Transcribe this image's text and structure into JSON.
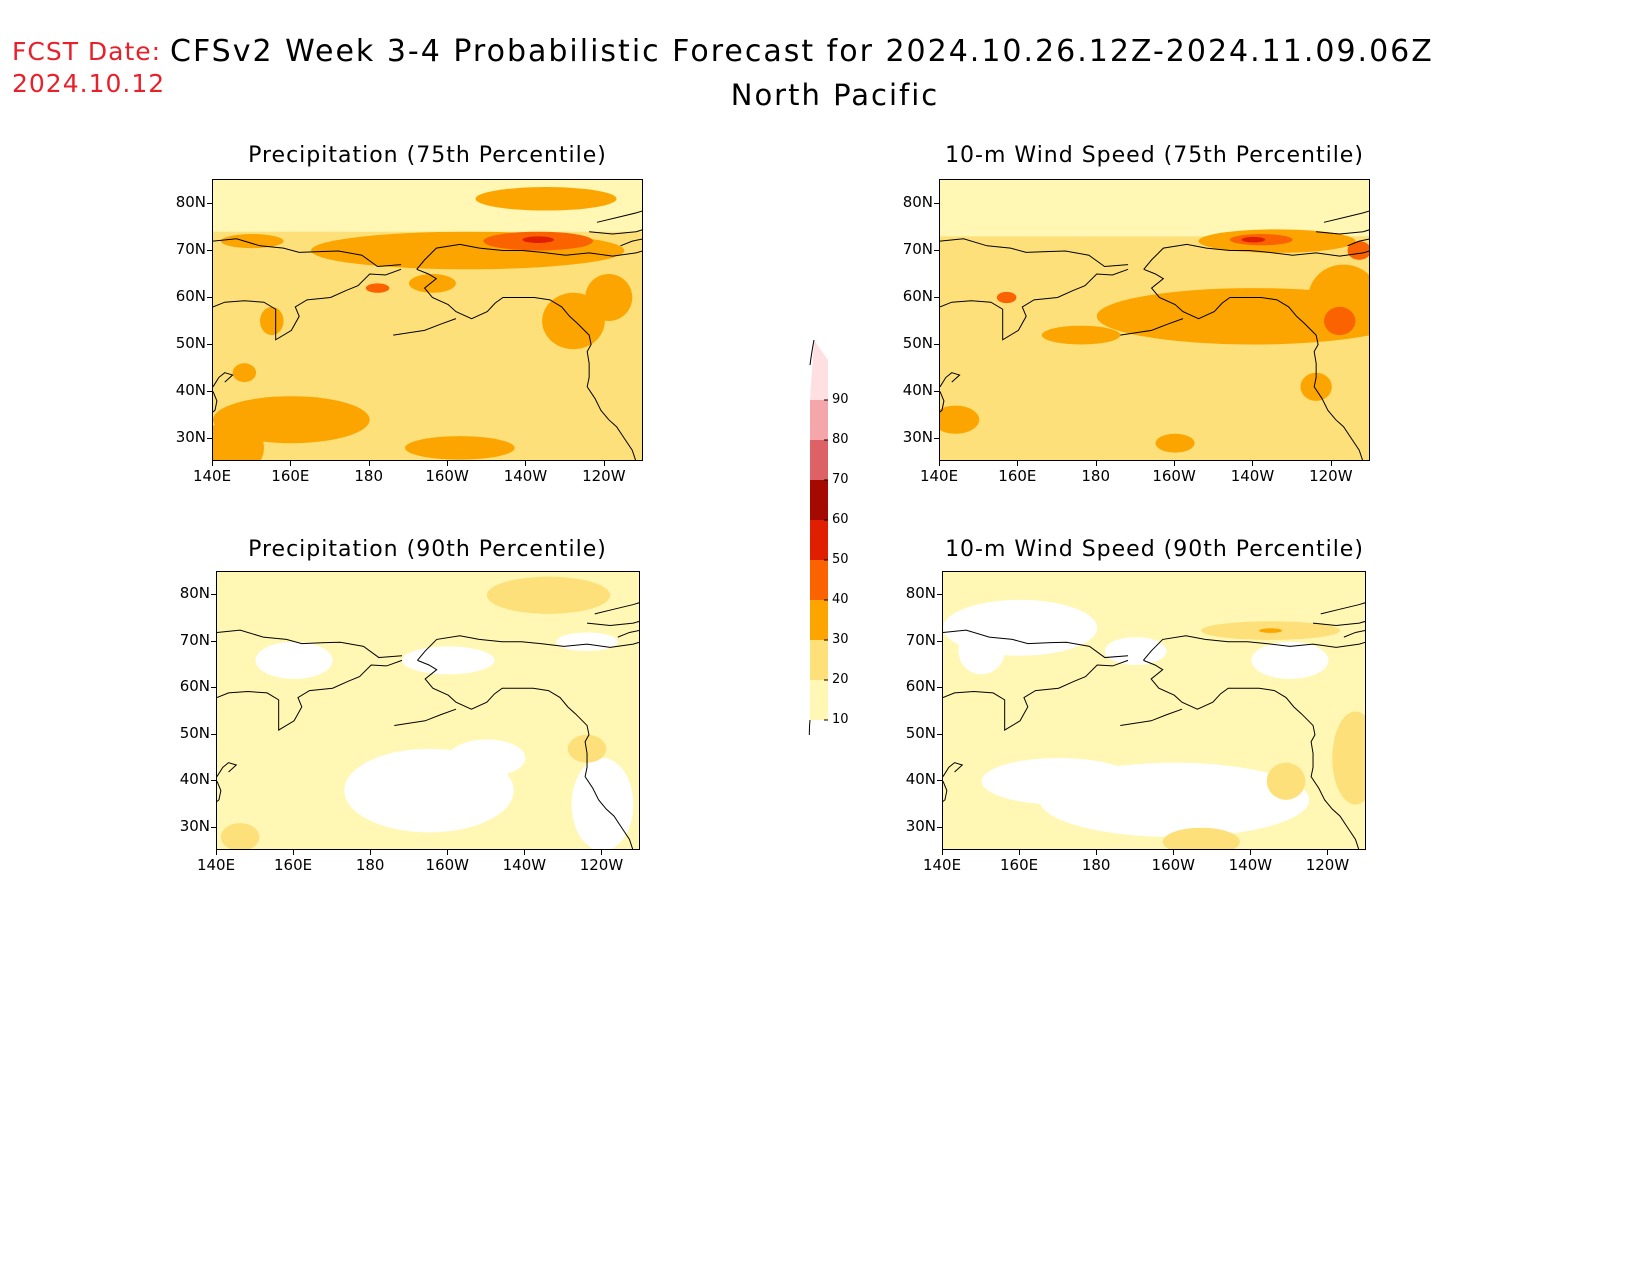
{
  "header": {
    "fcst_label": "FCST Date:",
    "fcst_date": "2024.10.12",
    "title": "CFSv2 Week 3-4 Probabilistic Forecast for 2024.10.26.12Z-2024.11.09.06Z",
    "region": "North Pacific"
  },
  "axes": {
    "lat_ticks": [
      "80N",
      "70N",
      "60N",
      "50N",
      "40N",
      "30N"
    ],
    "lat_values": [
      80,
      70,
      60,
      50,
      40,
      30
    ],
    "lon_ticks": [
      "140E",
      "160E",
      "180",
      "160W",
      "140W",
      "120W"
    ],
    "lon_values": [
      140,
      160,
      180,
      200,
      220,
      240
    ],
    "lon_range": [
      140,
      250
    ],
    "lat_range": [
      25,
      85
    ]
  },
  "panels": [
    {
      "id": "precip75",
      "title": "Precipitation (75th Percentile)",
      "level": "high"
    },
    {
      "id": "wind75",
      "title": "10-m Wind Speed (75th Percentile)",
      "level": "high"
    },
    {
      "id": "precip90",
      "title": "Precipitation (90th Percentile)",
      "level": "low"
    },
    {
      "id": "wind90",
      "title": "10-m Wind Speed (90th Percentile)",
      "level": "low"
    }
  ],
  "colorbar": {
    "levels": [
      "10",
      "20",
      "30",
      "40",
      "50",
      "60",
      "70",
      "80",
      "90"
    ],
    "colors": [
      "#fff7b3",
      "#fde07a",
      "#fca500",
      "#fb6200",
      "#e01e00",
      "#a50a00",
      "#dc6266",
      "#f4a6aa",
      "#ffe0e2"
    ]
  }
}
